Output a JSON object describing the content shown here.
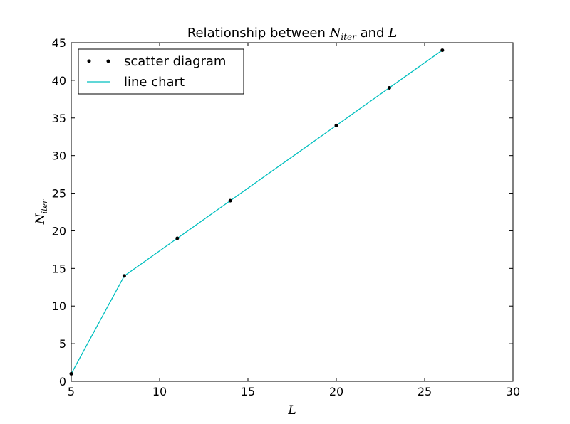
{
  "chart_data": {
    "type": "line",
    "title_prefix": "Relationship between ",
    "title_var1_main": "N",
    "title_var1_sub": "iter",
    "title_connector": " and ",
    "title_var2": "L",
    "xlabel": "L",
    "ylabel_main": "N",
    "ylabel_sub": "iter",
    "xlim": [
      5,
      30
    ],
    "ylim": [
      0,
      45
    ],
    "xticks": [
      5,
      10,
      15,
      20,
      25,
      30
    ],
    "yticks": [
      0,
      5,
      10,
      15,
      20,
      25,
      30,
      35,
      40,
      45
    ],
    "x": [
      5,
      8,
      11,
      14,
      20,
      23,
      26
    ],
    "y": [
      1,
      14,
      19,
      24,
      34,
      39,
      44
    ],
    "series": [
      {
        "name": "scatter diagram",
        "style": "scatter",
        "color": "#000000"
      },
      {
        "name": "line chart",
        "style": "line",
        "color": "#00bfbf"
      }
    ],
    "legend_position": "upper-left",
    "grid": false
  }
}
